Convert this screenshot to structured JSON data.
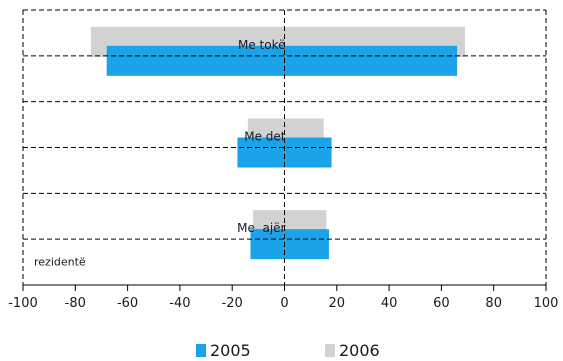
{
  "chart_data": {
    "type": "bar",
    "orientation": "horizontal",
    "categories": [
      "Me tokë",
      "Me det",
      "Me ajër"
    ],
    "category_labels_shown": [
      "Me tokë",
      "Me det",
      "Me  ajër"
    ],
    "extra_label": "rezidentë",
    "series": [
      {
        "name": "2005",
        "color": "#1aa3e8",
        "values": [
          -68,
          -18,
          -13
        ]
      },
      {
        "name": "2005",
        "color": "#1aa3e8",
        "values": [
          66,
          18,
          17
        ]
      },
      {
        "name": "2006",
        "color": "#d2d2d2",
        "values": [
          -74,
          -14,
          -12
        ]
      },
      {
        "name": "2006",
        "color": "#d2d2d2",
        "values": [
          69,
          15,
          16
        ]
      }
    ],
    "xlim": [
      -100,
      100
    ],
    "xticks": [
      -100,
      -80,
      -60,
      -40,
      -20,
      0,
      20,
      40,
      60,
      80,
      100
    ],
    "grid": "dashed",
    "legend": {
      "position": "bottom",
      "entries": [
        {
          "label": "2005",
          "color": "#1aa3e8"
        },
        {
          "label": "2006",
          "color": "#d2d2d2"
        }
      ]
    }
  }
}
